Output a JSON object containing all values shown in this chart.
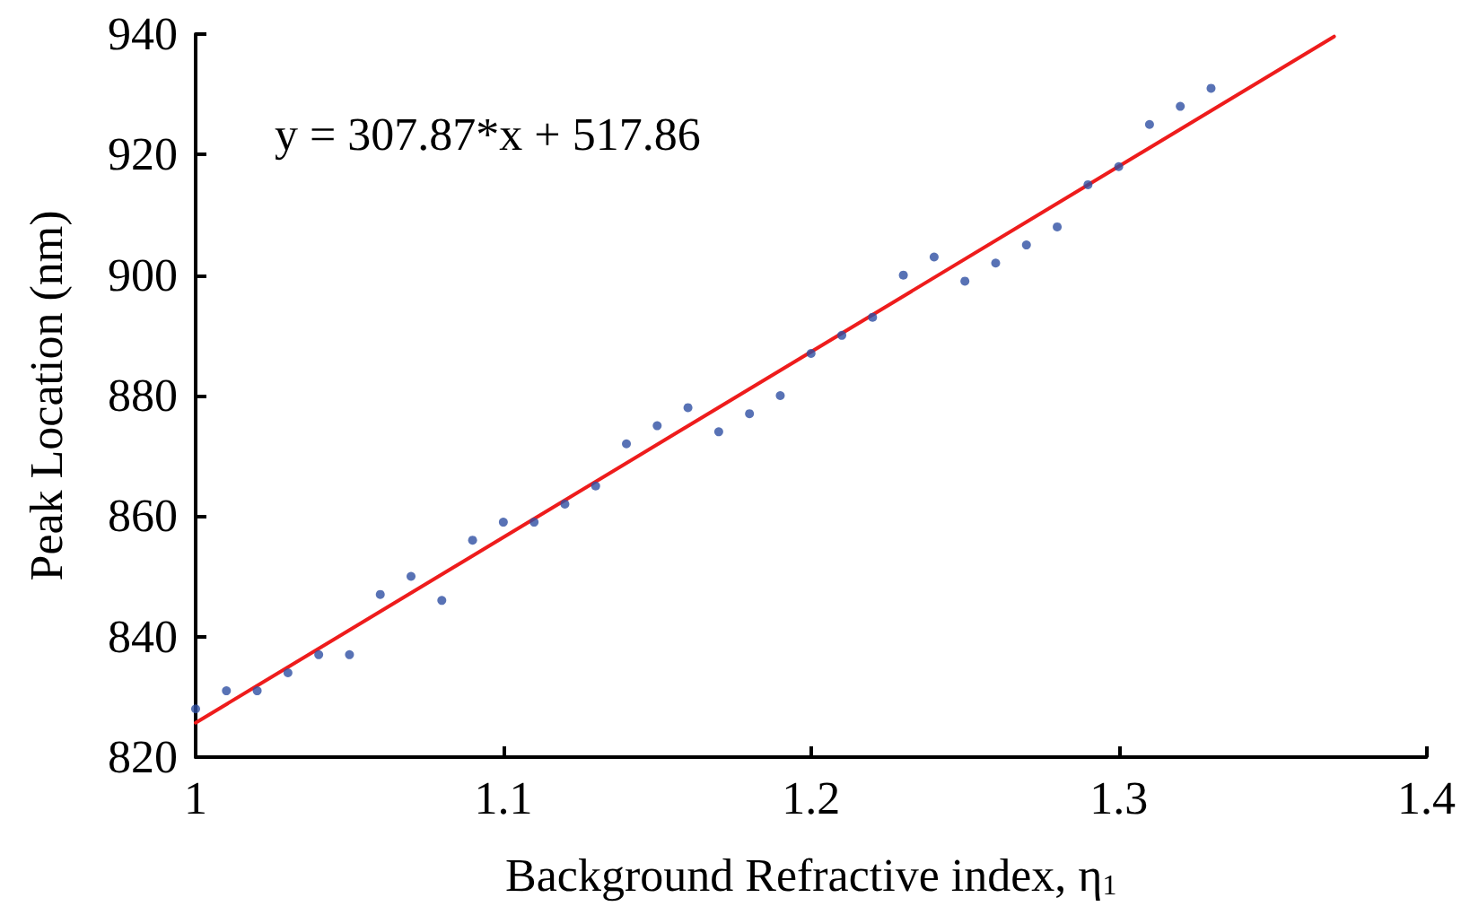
{
  "chart_data": {
    "type": "scatter",
    "xlabel": "Background Refractive index, η$_{1}$",
    "ylabel": "Peak Location (nm)",
    "annotations": [
      "y = 307.87*x + 517.86"
    ],
    "xlim": [
      1,
      1.4
    ],
    "xticks": [
      1,
      1.1,
      1.2,
      1.3,
      1.4
    ],
    "ylim": [
      820,
      940
    ],
    "yticks": [
      820,
      840,
      860,
      880,
      900,
      920,
      940
    ],
    "grid": false,
    "marker": "circle",
    "series": [
      {
        "color": "#2e4fa3",
        "x": [
          1.0,
          1.01,
          1.02,
          1.03,
          1.04,
          1.05,
          1.06,
          1.07,
          1.08,
          1.09,
          1.1,
          1.11,
          1.12,
          1.13,
          1.14,
          1.15,
          1.16,
          1.17,
          1.18,
          1.19,
          1.2,
          1.21,
          1.22,
          1.23,
          1.24,
          1.25,
          1.26,
          1.27,
          1.28,
          1.29,
          1.3,
          1.31,
          1.32,
          1.33
        ],
        "values": [
          828,
          831,
          831,
          834,
          837,
          837,
          847,
          850,
          846,
          856,
          859,
          859,
          862,
          865,
          872,
          875,
          878,
          874,
          877,
          880,
          887,
          890,
          893,
          900,
          903,
          899,
          902,
          905,
          908,
          915,
          918,
          925,
          928,
          931
        ]
      },
      {
        "type": "line",
        "color": "#ee1c1c",
        "marker": "none",
        "x": [
          1,
          1.37
        ],
        "values": [
          825.7,
          939.6
        ]
      }
    ]
  }
}
